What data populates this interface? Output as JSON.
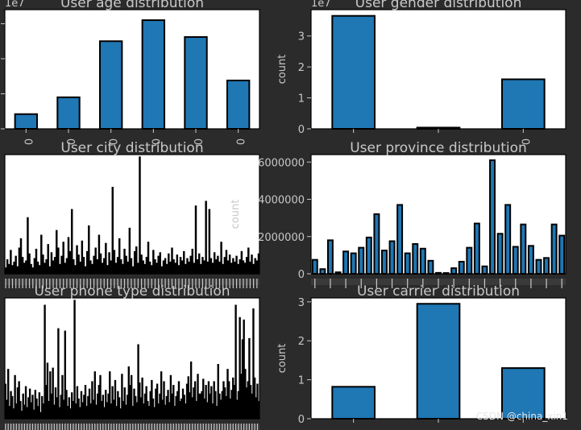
{
  "watermark": "CSDN @china_xin1",
  "chart_data": [
    {
      "id": "age",
      "type": "bar",
      "title": "User age distribution",
      "offset_label": "1e7",
      "ylabel": "",
      "categories": [
        "0",
        "0",
        "0",
        "0",
        "0",
        "0"
      ],
      "values": [
        0.42,
        0.9,
        2.5,
        3.1,
        2.62,
        1.38
      ],
      "ylim": [
        0,
        3.4
      ],
      "yticks": [],
      "grid": false
    },
    {
      "id": "gender",
      "type": "bar",
      "title": "User gender distribution",
      "offset_label": "1e7",
      "ylabel": "count",
      "categories": [
        "",
        "",
        "0"
      ],
      "values": [
        3.65,
        0.04,
        1.6
      ],
      "ylim": [
        0,
        3.85
      ],
      "yticks": [
        "0",
        "1",
        "2",
        "3"
      ],
      "grid": false
    },
    {
      "id": "city",
      "type": "bar",
      "title": "User city distribution",
      "ylabel": "",
      "values": [
        0.05,
        0.12,
        0.08,
        0.2,
        0.07,
        0.1,
        0.15,
        0.06,
        0.22,
        0.3,
        0.14,
        0.09,
        0.11,
        0.48,
        0.17,
        0.08,
        0.05,
        0.13,
        0.21,
        0.1,
        0.07,
        0.33,
        0.16,
        0.09,
        0.12,
        0.25,
        0.06,
        0.18,
        0.11,
        0.14,
        0.37,
        0.22,
        0.08,
        0.15,
        0.27,
        0.09,
        0.13,
        0.31,
        0.19,
        0.55,
        0.12,
        0.07,
        0.24,
        0.16,
        0.1,
        0.28,
        0.14,
        0.06,
        0.19,
        0.41,
        0.11,
        0.08,
        0.15,
        0.22,
        0.12,
        0.33,
        0.17,
        0.09,
        0.13,
        0.26,
        0.07,
        0.18,
        0.11,
        0.74,
        0.2,
        0.09,
        0.14,
        0.3,
        0.12,
        0.08,
        0.21,
        0.15,
        0.1,
        0.39,
        0.13,
        0.06,
        0.19,
        0.23,
        0.09,
        1.0,
        0.16,
        0.11,
        0.08,
        0.14,
        0.27,
        0.1,
        0.07,
        0.2,
        0.12,
        0.09,
        0.15,
        0.18,
        0.06,
        0.11,
        0.13,
        0.08,
        0.17,
        0.1,
        0.22,
        0.12,
        0.09,
        0.16,
        0.07,
        0.14,
        0.11,
        0.19,
        0.08,
        0.13,
        0.1,
        0.15,
        0.21,
        0.09,
        0.58,
        0.12,
        0.17,
        0.08,
        0.14,
        0.11,
        0.62,
        0.1,
        0.55,
        0.13,
        0.09,
        0.18,
        0.12,
        0.15,
        0.1,
        0.27,
        0.08,
        0.14,
        0.2,
        0.11,
        0.16,
        0.09,
        0.13,
        0.1,
        0.15,
        0.08,
        0.12,
        0.19,
        0.11,
        0.09,
        0.14,
        0.22,
        0.1,
        0.16,
        0.08,
        0.13,
        0.11,
        0.17
      ]
    },
    {
      "id": "province",
      "type": "bar",
      "title": "User province distribution",
      "ylabel": "count",
      "values": [
        750000,
        250000,
        1800000,
        80000,
        1200000,
        1100000,
        1400000,
        1950000,
        3200000,
        1250000,
        1750000,
        3700000,
        1100000,
        1600000,
        1350000,
        700000,
        50000,
        40000,
        300000,
        650000,
        1400000,
        2700000,
        400000,
        6100000,
        2150000,
        3700000,
        1450000,
        2650000,
        1500000,
        750000,
        850000,
        2650000,
        2050000
      ],
      "ylim": [
        0,
        6400000
      ],
      "yticks": [
        "0",
        "2000000",
        "4000000",
        "6000000"
      ],
      "grid": false
    },
    {
      "id": "phone",
      "type": "bar",
      "title": "User phone type distribution",
      "ylabel": "",
      "values": [
        0.28,
        0.15,
        0.4,
        0.1,
        0.22,
        0.18,
        0.08,
        0.35,
        0.12,
        0.25,
        0.3,
        0.14,
        0.06,
        0.2,
        0.11,
        0.26,
        0.09,
        0.17,
        0.24,
        0.13,
        0.19,
        0.07,
        0.23,
        0.16,
        0.1,
        0.21,
        0.05,
        0.18,
        0.12,
        0.92,
        0.27,
        0.45,
        0.14,
        0.38,
        0.2,
        0.41,
        0.11,
        0.25,
        0.17,
        0.73,
        0.09,
        0.19,
        0.35,
        0.15,
        0.71,
        0.23,
        0.1,
        0.17,
        0.08,
        0.21,
        0.14,
        0.96,
        0.12,
        0.26,
        0.16,
        0.09,
        0.22,
        0.13,
        0.19,
        0.27,
        0.1,
        0.18,
        0.24,
        0.12,
        0.3,
        0.15,
        0.38,
        0.11,
        0.2,
        0.27,
        0.35,
        0.14,
        0.19,
        0.09,
        0.23,
        0.13,
        0.2,
        0.38,
        0.12,
        0.26,
        0.15,
        0.31,
        0.1,
        0.22,
        0.17,
        0.08,
        0.36,
        0.14,
        0.25,
        0.11,
        0.19,
        0.42,
        0.27,
        0.35,
        0.1,
        0.24,
        0.18,
        0.13,
        0.6,
        0.29,
        0.17,
        0.33,
        0.12,
        0.2,
        0.26,
        0.14,
        0.1,
        0.22,
        0.31,
        0.16,
        0.09,
        0.24,
        0.28,
        0.12,
        0.2,
        0.38,
        0.15,
        0.3,
        0.11,
        0.18,
        0.23,
        0.13,
        0.35,
        0.2,
        0.27,
        0.1,
        0.18,
        0.22,
        0.3,
        0.14,
        0.16,
        0.24,
        0.19,
        0.12,
        0.28,
        0.34,
        0.21,
        0.46,
        0.17,
        0.25,
        0.3,
        0.14,
        0.36,
        0.2,
        0.2,
        0.22,
        0.32,
        0.16,
        0.27,
        0.13,
        0.3,
        0.2,
        0.26,
        0.12,
        0.3,
        0.22,
        0.1,
        0.44,
        0.2,
        0.15,
        0.22,
        0.3,
        0.25,
        0.18,
        0.4,
        0.3,
        0.16,
        0.23,
        0.33,
        0.27,
        0.92,
        0.15,
        0.22,
        0.82,
        0.36,
        0.64,
        0.8,
        0.4,
        0.25,
        0.3,
        0.65,
        0.27,
        0.2,
        0.89,
        0.33,
        0.17,
        0.28,
        0.14
      ]
    },
    {
      "id": "carrier",
      "type": "bar",
      "title": "User carrier distribution",
      "ylabel": "count",
      "categories": [
        "",
        "",
        ""
      ],
      "values": [
        0.82,
        2.95,
        1.3
      ],
      "ylim": [
        0,
        3.1
      ],
      "yticks": [
        "0",
        "1",
        "2",
        "3"
      ],
      "grid": false
    }
  ]
}
